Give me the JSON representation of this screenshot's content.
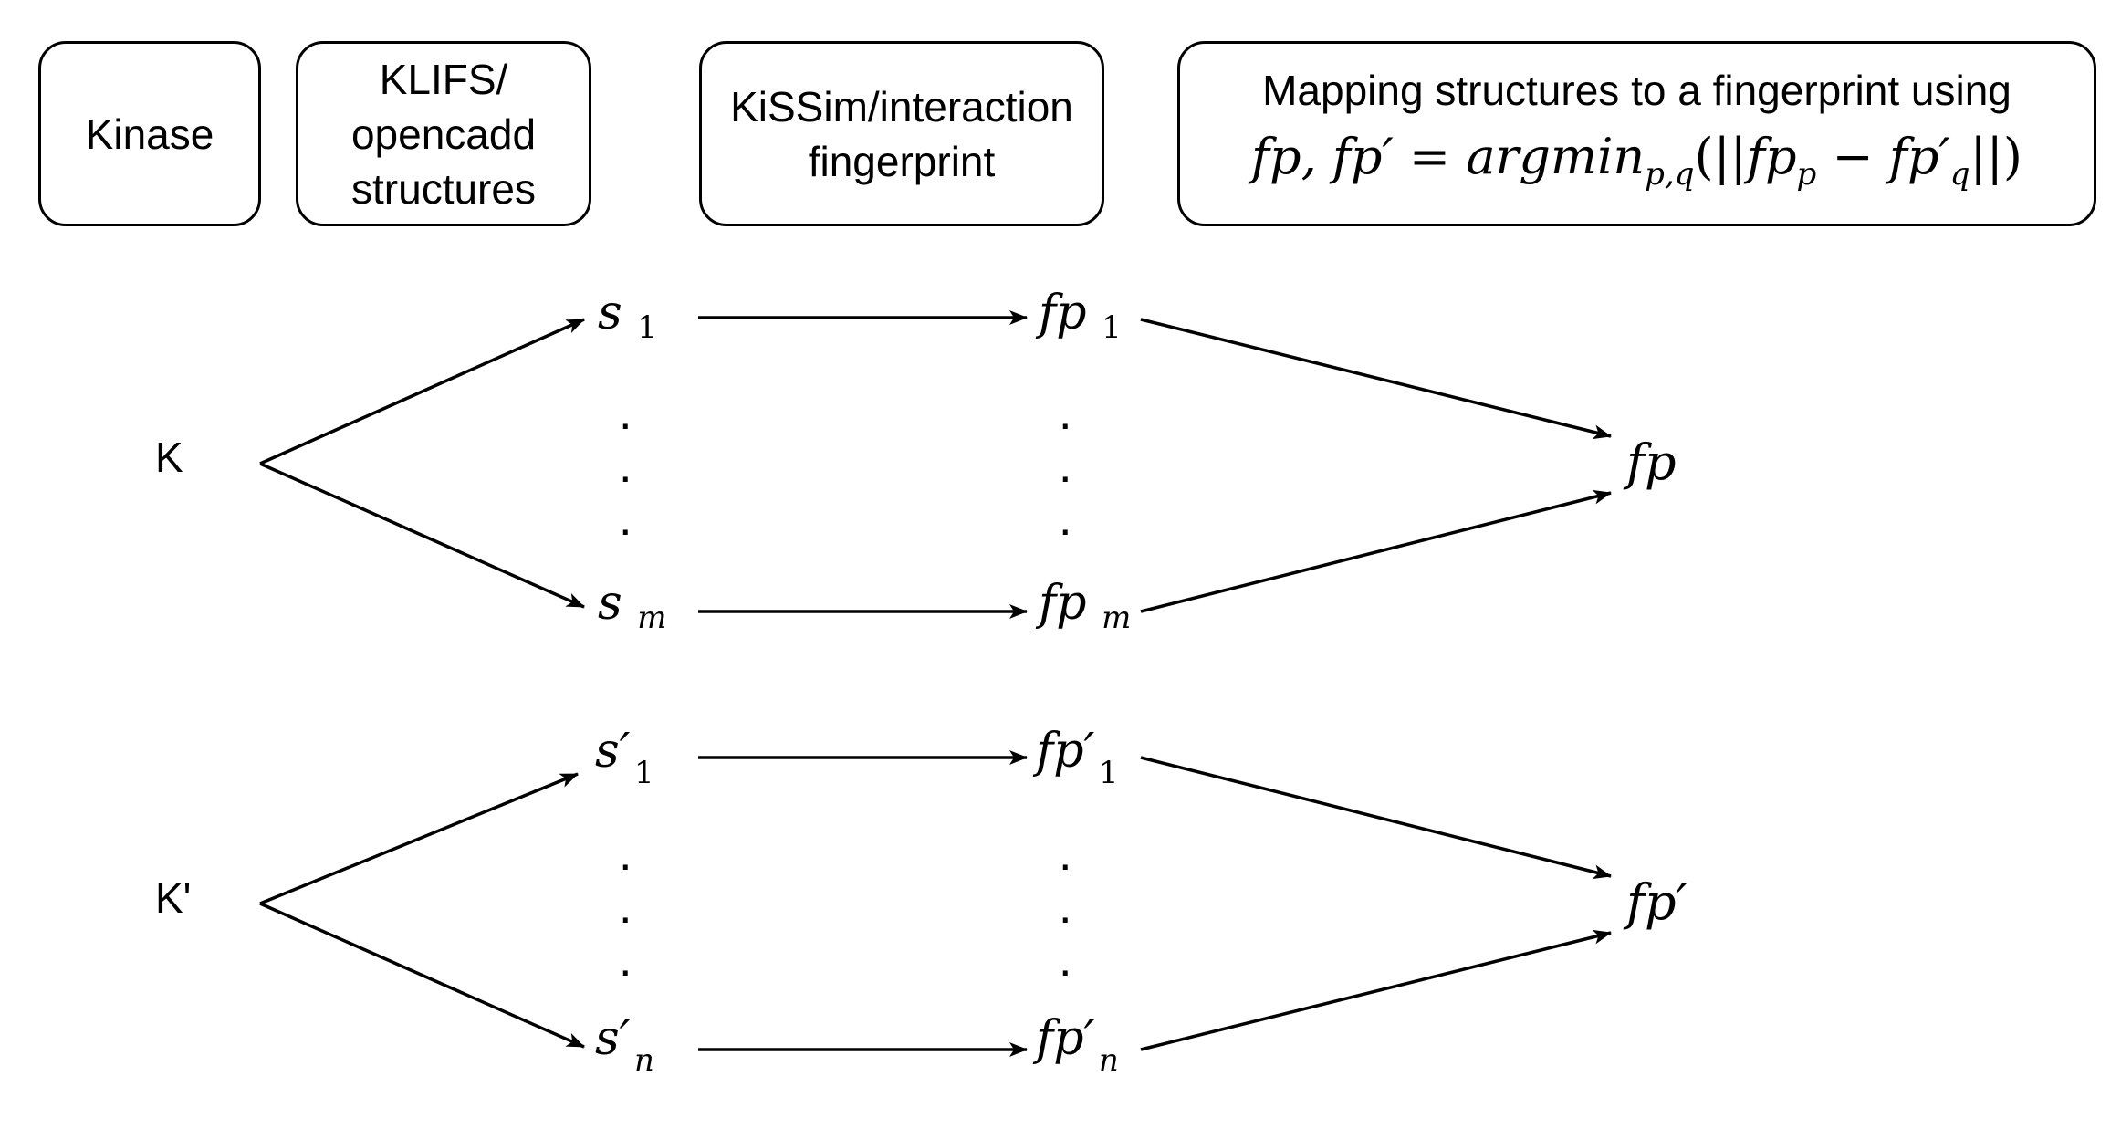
{
  "headers": {
    "kinase": {
      "lines": [
        "Kinase"
      ]
    },
    "structures": {
      "lines": [
        "KLIFS/",
        "opencadd",
        "structures"
      ]
    },
    "fingerprint": {
      "lines": [
        "KiSSim/interaction",
        "fingerprint"
      ]
    },
    "mapping": {
      "text": "Mapping structures to a fingerprint using",
      "formula": "fp, fp′ = argmin_{p,q}(||fp_p − fp′_q||)"
    }
  },
  "kinase_a": {
    "label": "K",
    "s_first": {
      "base": "s",
      "sub": "1"
    },
    "s_last": {
      "base": "s",
      "sub": "m"
    },
    "fp_first": {
      "base": "fp",
      "sub": "1"
    },
    "fp_last": {
      "base": "fp",
      "sub": "m"
    },
    "result": "fp"
  },
  "kinase_b": {
    "label": "K'",
    "s_first": {
      "base": "s′",
      "sub": "1"
    },
    "s_last": {
      "base": "s′",
      "sub": "n"
    },
    "fp_first": {
      "base": "fp′",
      "sub": "1"
    },
    "fp_last": {
      "base": "fp′",
      "sub": "n"
    },
    "result": "fp′"
  },
  "ellipsis_dot": "."
}
